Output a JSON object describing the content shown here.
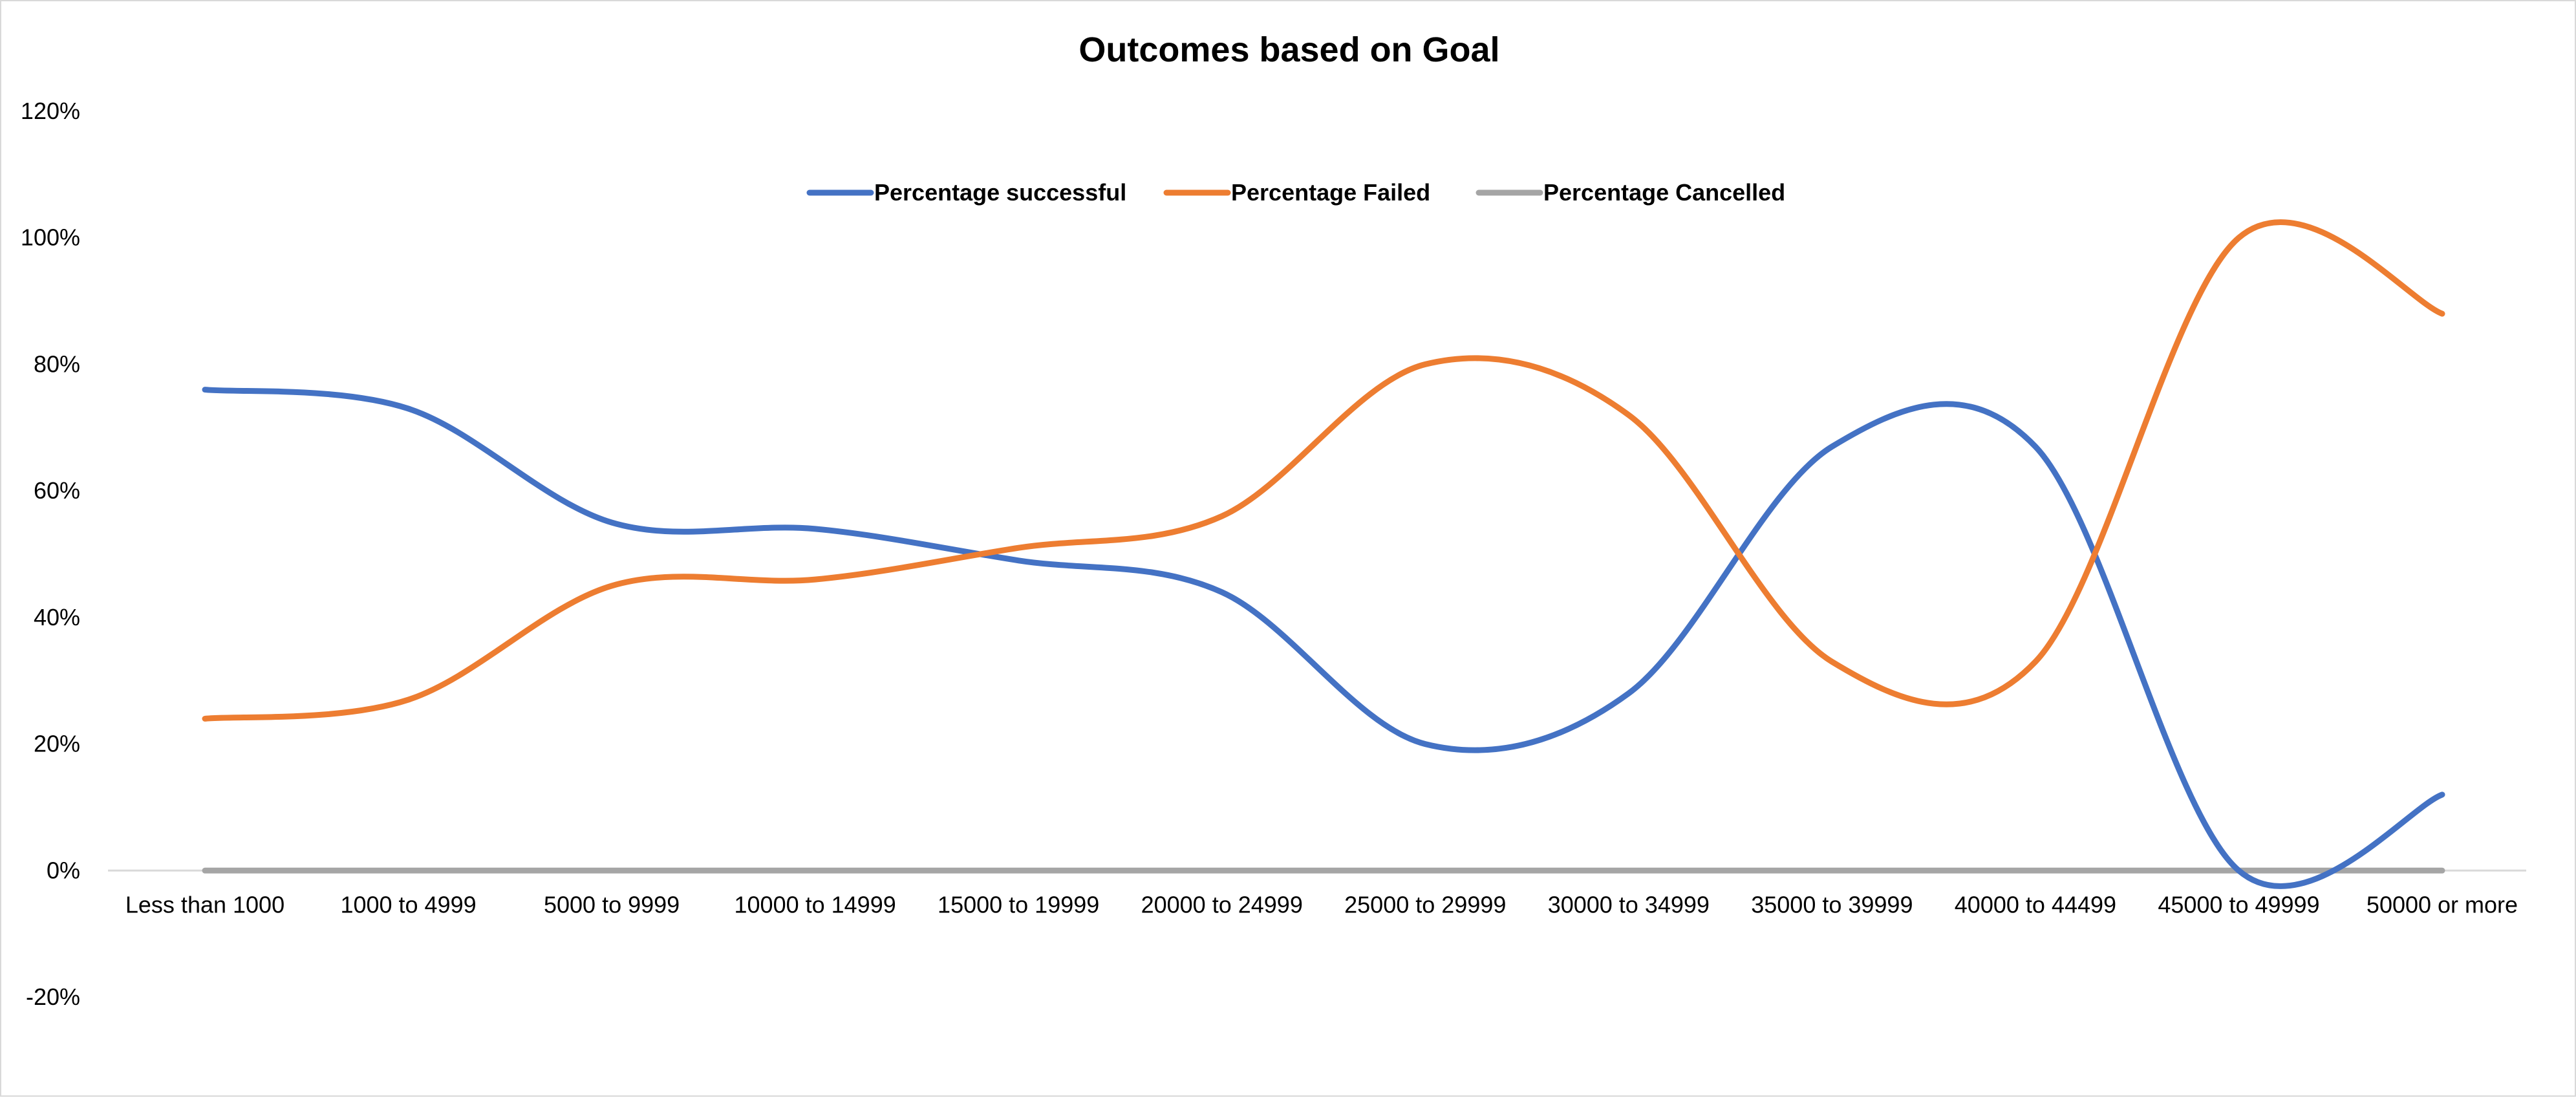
{
  "chart_data": {
    "type": "line",
    "smooth": true,
    "title": "Outcomes based on Goal",
    "xlabel": "",
    "ylabel": "",
    "categories": [
      "Less than 1000",
      "1000 to 4999",
      "5000 to 9999",
      "10000 to 14999",
      "15000 to 19999",
      "20000 to 24999",
      "25000 to 29999",
      "30000 to 34999",
      "35000 to 39999",
      "40000 to 44499",
      "45000 to 49999",
      "50000 or more"
    ],
    "series": [
      {
        "name": "Percentage successful",
        "color": "#4472c4",
        "values": [
          0.76,
          0.73,
          0.55,
          0.54,
          0.49,
          0.44,
          0.2,
          0.28,
          0.67,
          0.67,
          0.0,
          0.12
        ]
      },
      {
        "name": "Percentage Failed",
        "color": "#ed7d31",
        "values": [
          0.24,
          0.27,
          0.45,
          0.46,
          0.51,
          0.56,
          0.8,
          0.72,
          0.33,
          0.33,
          1.0,
          0.88
        ]
      },
      {
        "name": "Percentage Cancelled",
        "color": "#a5a5a5",
        "values": [
          0,
          0,
          0,
          0,
          0,
          0,
          0,
          0,
          0,
          0,
          0,
          0
        ]
      }
    ],
    "ylim": [
      -0.2,
      1.2
    ],
    "yticks": [
      -0.2,
      0,
      0.2,
      0.4,
      0.6,
      0.8,
      1.0,
      1.2
    ],
    "ytick_labels": [
      "-20%",
      "0%",
      "20%",
      "40%",
      "60%",
      "80%",
      "100%",
      "120%"
    ],
    "grid": false,
    "legend_position": "top"
  }
}
